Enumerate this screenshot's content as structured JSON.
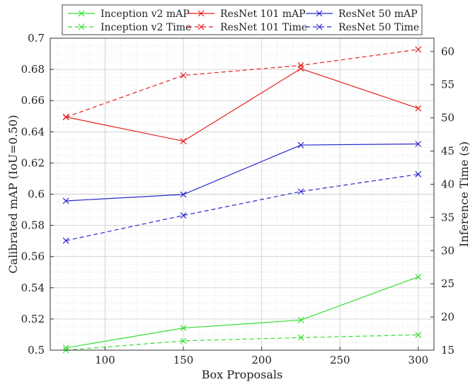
{
  "chart_data": {
    "type": "line",
    "title": "",
    "xlabel": "Box Proposals",
    "ylabel": "Calibrated mAP (IoU=0.50)",
    "y2label": "Inference Time (s)",
    "xlim": [
      65,
      310
    ],
    "ylim": [
      0.5,
      0.7
    ],
    "y2lim": [
      15,
      62
    ],
    "x_ticks": [
      100,
      150,
      200,
      250,
      300
    ],
    "y_ticks": [
      0.5,
      0.52,
      0.54,
      0.56,
      0.58,
      0.6,
      0.62,
      0.64,
      0.66,
      0.68,
      0.7
    ],
    "y_tick_labels": [
      "0.5",
      "0.52",
      "0.54",
      "0.56",
      "0.58",
      "0.6",
      "0.62",
      "0.64",
      "0.66",
      "0.68",
      "0.7"
    ],
    "y2_ticks": [
      15,
      20,
      25,
      30,
      35,
      40,
      45,
      50,
      55,
      60
    ],
    "grid": true,
    "legend_position": "top",
    "x": [
      75,
      150,
      225,
      300
    ],
    "series": [
      {
        "name": "Inception v2 mAP",
        "axis": "left",
        "color": "#33dd33",
        "dash": "solid",
        "values": [
          0.5015,
          0.5142,
          0.5193,
          0.547
        ]
      },
      {
        "name": "ResNet 101 mAP",
        "axis": "left",
        "color": "#e62020",
        "dash": "solid",
        "values": [
          0.6495,
          0.634,
          0.6805,
          0.655
        ]
      },
      {
        "name": "ResNet 50 mAP",
        "axis": "left",
        "color": "#2828cc",
        "dash": "solid",
        "values": [
          0.5957,
          0.5998,
          0.6315,
          0.6322
        ]
      },
      {
        "name": "Inception v2 Time",
        "axis": "right",
        "color": "#33dd33",
        "dash": "dashed",
        "values": [
          15.0,
          16.4,
          16.9,
          17.3
        ]
      },
      {
        "name": "ResNet 101 Time",
        "axis": "right",
        "color": "#e62020",
        "dash": "dashed",
        "values": [
          50.1,
          56.4,
          57.9,
          60.3
        ]
      },
      {
        "name": "ResNet 50 Time",
        "axis": "right",
        "color": "#2828cc",
        "dash": "dashed",
        "values": [
          31.5,
          35.3,
          38.9,
          41.5
        ]
      }
    ],
    "legend_order": [
      0,
      1,
      2,
      3,
      4,
      5
    ]
  }
}
